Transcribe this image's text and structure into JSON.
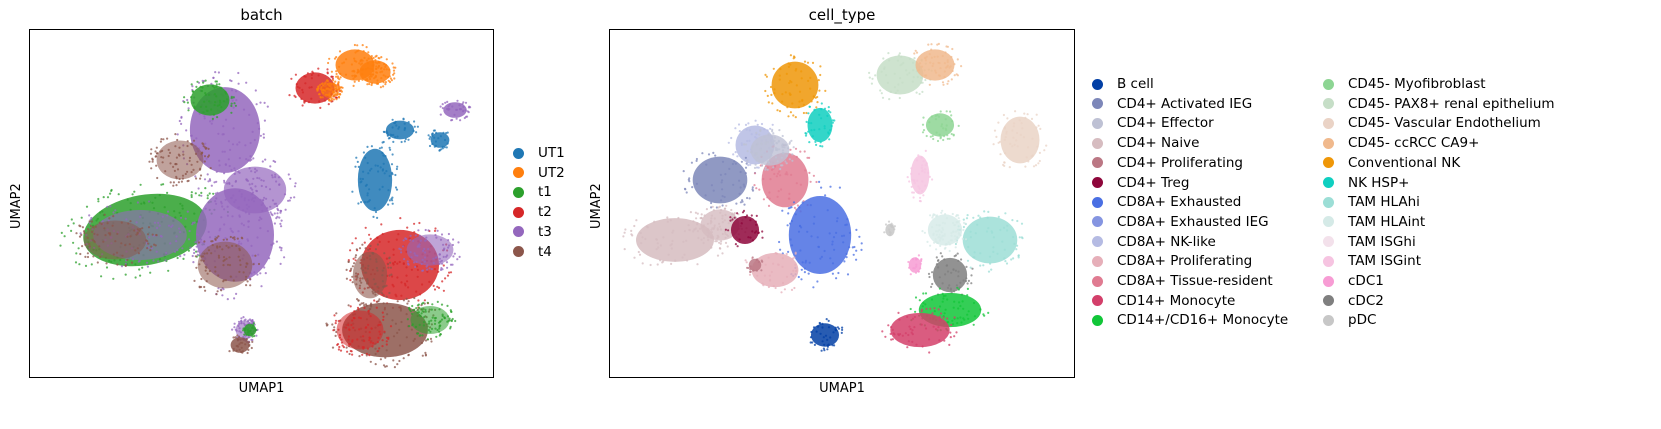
{
  "figure": {
    "panels": [
      {
        "title": "batch",
        "xlabel": "UMAP1",
        "ylabel": "UMAP2",
        "legend": [
          {
            "label": "UT1",
            "color": "#1f77b4"
          },
          {
            "label": "UT2",
            "color": "#ff7f0e"
          },
          {
            "label": "t1",
            "color": "#2ca02c"
          },
          {
            "label": "t2",
            "color": "#d62728"
          },
          {
            "label": "t3",
            "color": "#9467bd"
          },
          {
            "label": "t4",
            "color": "#8c564b"
          }
        ]
      },
      {
        "title": "cell_type",
        "xlabel": "UMAP1",
        "ylabel": "UMAP2",
        "legend": [
          {
            "label": "B cell",
            "color": "#023fa5"
          },
          {
            "label": "CD4+ Activated IEG",
            "color": "#7d87b9"
          },
          {
            "label": "CD4+ Effector",
            "color": "#bec1d4"
          },
          {
            "label": "CD4+ Naive",
            "color": "#d6bcc0"
          },
          {
            "label": "CD4+ Proliferating",
            "color": "#bb7784"
          },
          {
            "label": "CD4+ Treg",
            "color": "#8e063b"
          },
          {
            "label": "CD8A+ Exhausted",
            "color": "#4a6fe3"
          },
          {
            "label": "CD8A+ Exhausted IEG",
            "color": "#8595e1"
          },
          {
            "label": "CD8A+ NK-like",
            "color": "#b5bbe3"
          },
          {
            "label": "CD8A+ Proliferating",
            "color": "#e6afb9"
          },
          {
            "label": "CD8A+ Tissue-resident",
            "color": "#e07b91"
          },
          {
            "label": "CD14+ Monocyte",
            "color": "#d33f6a"
          },
          {
            "label": "CD14+/CD16+ Monocyte",
            "color": "#11c638"
          },
          {
            "label": "CD45- Myofibroblast",
            "color": "#8dd593"
          },
          {
            "label": "CD45- PAX8+ renal epithelium",
            "color": "#c6dec7"
          },
          {
            "label": "CD45- Vascular Endothelium",
            "color": "#ead3c6"
          },
          {
            "label": "CD45- ccRCC CA9+",
            "color": "#f0b98d"
          },
          {
            "label": "Conventional NK",
            "color": "#ef9708"
          },
          {
            "label": "NK HSP+",
            "color": "#0fcfc0"
          },
          {
            "label": "TAM HLAhi",
            "color": "#9cded6"
          },
          {
            "label": "TAM HLAint",
            "color": "#d5eae7"
          },
          {
            "label": "TAM ISGhi",
            "color": "#f3e1eb"
          },
          {
            "label": "TAM ISGint",
            "color": "#f6c4e1"
          },
          {
            "label": "cDC1",
            "color": "#f79cd4"
          },
          {
            "label": "cDC2",
            "color": "#7f7f7f"
          },
          {
            "label": "pDC",
            "color": "#c7c7c7"
          }
        ]
      }
    ]
  },
  "chart_data": [
    {
      "type": "scatter",
      "title": "batch",
      "xlabel": "UMAP1",
      "ylabel": "UMAP2",
      "ticks": "none",
      "grid": false,
      "legend_position": "right",
      "series": [
        {
          "name": "UT1"
        },
        {
          "name": "UT2"
        },
        {
          "name": "t1"
        },
        {
          "name": "t2"
        },
        {
          "name": "t3"
        },
        {
          "name": "t4"
        }
      ]
    },
    {
      "type": "scatter",
      "title": "cell_type",
      "xlabel": "UMAP1",
      "ylabel": "UMAP2",
      "ticks": "none",
      "grid": false,
      "legend_position": "right",
      "legend_columns": 2,
      "series": [
        {
          "name": "B cell"
        },
        {
          "name": "CD4+ Activated IEG"
        },
        {
          "name": "CD4+ Effector"
        },
        {
          "name": "CD4+ Naive"
        },
        {
          "name": "CD4+ Proliferating"
        },
        {
          "name": "CD4+ Treg"
        },
        {
          "name": "CD8A+ Exhausted"
        },
        {
          "name": "CD8A+ Exhausted IEG"
        },
        {
          "name": "CD8A+ NK-like"
        },
        {
          "name": "CD8A+ Proliferating"
        },
        {
          "name": "CD8A+ Tissue-resident"
        },
        {
          "name": "CD14+ Monocyte"
        },
        {
          "name": "CD14+/CD16+ Monocyte"
        },
        {
          "name": "CD45- Myofibroblast"
        },
        {
          "name": "CD45- PAX8+ renal epithelium"
        },
        {
          "name": "CD45- Vascular Endothelium"
        },
        {
          "name": "CD45- ccRCC CA9+"
        },
        {
          "name": "Conventional NK"
        },
        {
          "name": "NK HSP+"
        },
        {
          "name": "TAM HLAhi"
        },
        {
          "name": "TAM HLAint"
        },
        {
          "name": "TAM ISGhi"
        },
        {
          "name": "TAM ISGint"
        },
        {
          "name": "cDC1"
        },
        {
          "name": "cDC2"
        },
        {
          "name": "pDC"
        }
      ]
    }
  ]
}
